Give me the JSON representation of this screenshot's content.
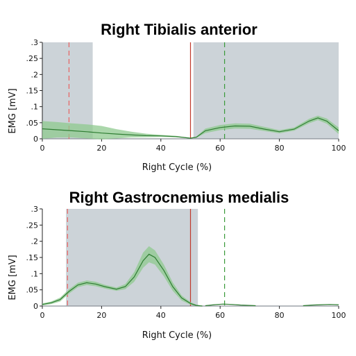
{
  "chart_data": [
    {
      "type": "line",
      "title": "Right Tibialis anterior",
      "xlabel": "Right Cycle (%)",
      "ylabel": "EMG [mV]",
      "xlim": [
        0,
        100
      ],
      "ylim": [
        0,
        0.3
      ],
      "xticks": [
        "0",
        "20",
        "40",
        "60",
        "80",
        "100"
      ],
      "yticks": [
        ".3",
        ".25",
        ".2",
        ".15",
        ".1",
        ".05",
        "0"
      ],
      "grid": false,
      "colors": {
        "mean": "#2e7d32",
        "band": "#8fc98f",
        "shade": "#ccd3d8",
        "foot_off_left": "#e86060",
        "foot_off_right": "#3a9a3a",
        "contact_right": "#c0392b"
      },
      "activity_regions": [
        [
          0,
          17
        ],
        [
          51,
          100
        ]
      ],
      "events": [
        {
          "x": 9,
          "style": "dashed",
          "color": "#e86060"
        },
        {
          "x": 50,
          "style": "solid",
          "color": "#c0392b"
        },
        {
          "x": 61.5,
          "style": "dashed",
          "color": "#3a9a3a"
        }
      ],
      "series": [
        {
          "x": [
            0,
            5,
            10,
            15,
            20,
            25,
            30,
            35,
            40,
            45,
            50,
            52,
            55,
            60,
            65,
            70,
            75,
            80,
            85,
            90,
            93,
            96,
            100
          ],
          "mean": [
            0.031,
            0.028,
            0.025,
            0.022,
            0.018,
            0.015,
            0.012,
            0.01,
            0.009,
            0.007,
            0.002,
            0.005,
            0.025,
            0.035,
            0.04,
            0.039,
            0.03,
            0.022,
            0.03,
            0.055,
            0.065,
            0.055,
            0.025
          ],
          "upper": [
            0.055,
            0.052,
            0.048,
            0.045,
            0.04,
            0.03,
            0.022,
            0.016,
            0.012,
            0.009,
            0.003,
            0.007,
            0.032,
            0.043,
            0.048,
            0.047,
            0.037,
            0.027,
            0.035,
            0.062,
            0.072,
            0.063,
            0.035
          ],
          "lower": [
            0.0,
            0.004,
            0.004,
            0.001,
            -0.002,
            0.001,
            0.004,
            0.005,
            0.006,
            0.005,
            0.001,
            0.003,
            0.018,
            0.027,
            0.032,
            0.031,
            0.024,
            0.017,
            0.025,
            0.048,
            0.058,
            0.047,
            0.015
          ]
        }
      ]
    },
    {
      "type": "line",
      "title": "Right Gastrocnemius medialis",
      "xlabel": "Right Cycle (%)",
      "ylabel": "EMG [mV]",
      "xlim": [
        0,
        100
      ],
      "ylim": [
        0,
        0.3
      ],
      "xticks": [
        "0",
        "20",
        "40",
        "60",
        "80",
        "100"
      ],
      "yticks": [
        ".3",
        ".25",
        ".2",
        ".15",
        ".1",
        ".05",
        "0"
      ],
      "grid": false,
      "colors": {
        "mean": "#2e7d32",
        "band": "#8fc98f",
        "shade": "#ccd3d8",
        "foot_off_left": "#e86060",
        "foot_off_right": "#3a9a3a",
        "contact_right": "#c0392b"
      },
      "activity_regions": [
        [
          8,
          52.5
        ]
      ],
      "events": [
        {
          "x": 8.5,
          "style": "dashed",
          "color": "#e86060"
        },
        {
          "x": 50,
          "style": "solid",
          "color": "#c0392b"
        },
        {
          "x": 61.5,
          "style": "dashed",
          "color": "#3a9a3a"
        }
      ],
      "series": [
        {
          "x": [
            0,
            3,
            6,
            9,
            12,
            15,
            18,
            21,
            25,
            28,
            31,
            34,
            36,
            38,
            41,
            44,
            47,
            50,
            52,
            54
          ],
          "mean": [
            0.005,
            0.01,
            0.02,
            0.045,
            0.065,
            0.072,
            0.068,
            0.06,
            0.052,
            0.06,
            0.09,
            0.14,
            0.16,
            0.15,
            0.11,
            0.06,
            0.025,
            0.008,
            0.002,
            0.0
          ],
          "upper": [
            0.008,
            0.014,
            0.026,
            0.052,
            0.072,
            0.079,
            0.075,
            0.066,
            0.057,
            0.068,
            0.105,
            0.165,
            0.185,
            0.172,
            0.128,
            0.073,
            0.033,
            0.012,
            0.004,
            0.001
          ],
          "lower": [
            0.002,
            0.006,
            0.014,
            0.038,
            0.058,
            0.065,
            0.061,
            0.054,
            0.047,
            0.052,
            0.075,
            0.118,
            0.135,
            0.128,
            0.092,
            0.047,
            0.017,
            0.004,
            0.0,
            0.0
          ]
        },
        {
          "x": [
            55,
            58,
            61,
            64,
            67,
            70,
            72
          ],
          "mean": [
            0.001,
            0.004,
            0.006,
            0.005,
            0.003,
            0.002,
            0.001
          ],
          "upper": [
            0.002,
            0.005,
            0.007,
            0.006,
            0.004,
            0.003,
            0.002
          ],
          "lower": [
            0.0,
            0.003,
            0.005,
            0.004,
            0.002,
            0.001,
            0.0
          ]
        },
        {
          "x": [
            88,
            91,
            94,
            97,
            100
          ],
          "mean": [
            0.001,
            0.003,
            0.004,
            0.005,
            0.004
          ],
          "upper": [
            0.002,
            0.004,
            0.005,
            0.006,
            0.005
          ],
          "lower": [
            0.0,
            0.002,
            0.003,
            0.004,
            0.003
          ]
        }
      ]
    }
  ]
}
